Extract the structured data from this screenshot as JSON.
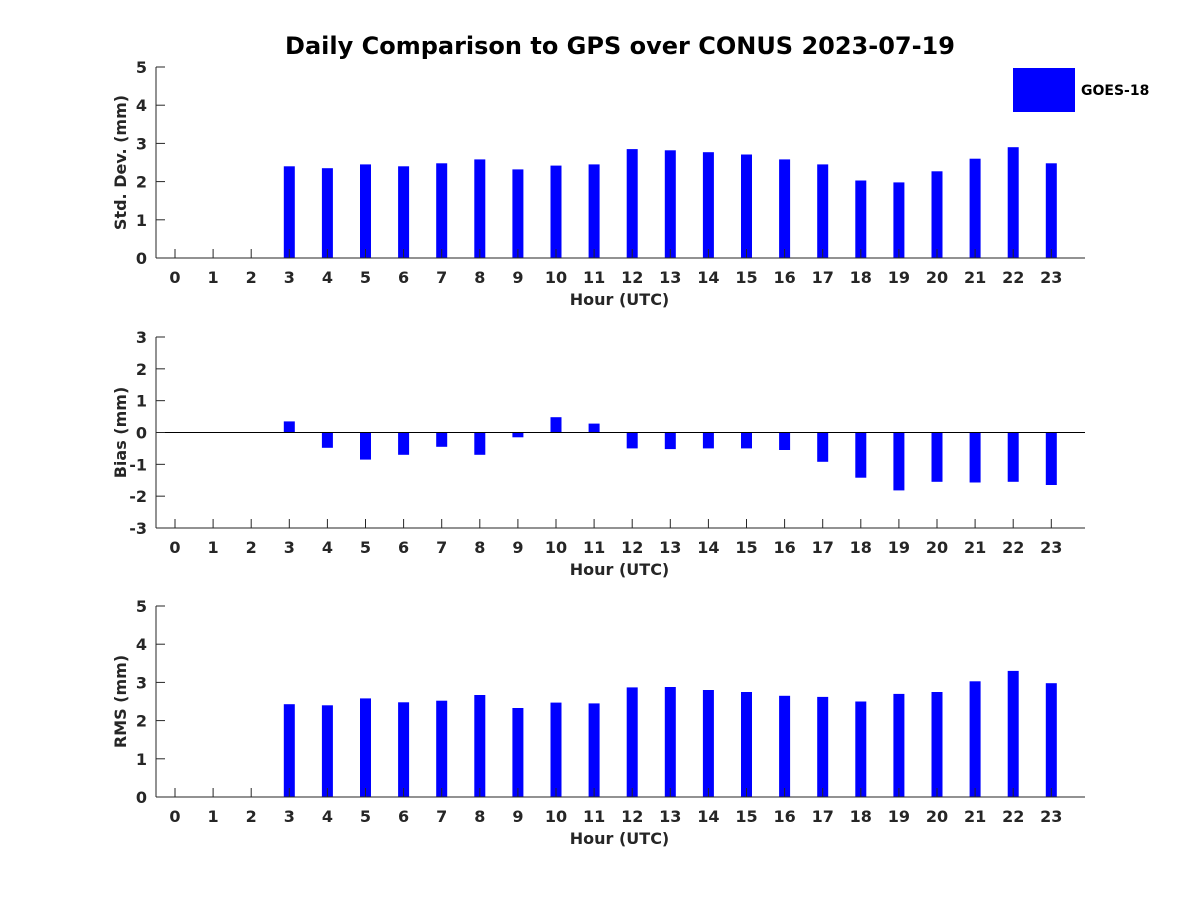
{
  "title": "Daily Comparison to GPS over CONUS 2023-07-19",
  "legend": {
    "label": "GOES-18",
    "position": "top-right"
  },
  "colors": {
    "bar": "#0000ff",
    "axis": "#262626"
  },
  "chart_data": [
    {
      "type": "bar",
      "ylabel": "Std. Dev. (mm)",
      "xlabel": "Hour (UTC)",
      "ylim": [
        0,
        5
      ],
      "yticks": [
        0,
        1,
        2,
        3,
        4,
        5
      ],
      "categories": [
        0,
        1,
        2,
        3,
        4,
        5,
        6,
        7,
        8,
        9,
        10,
        11,
        12,
        13,
        14,
        15,
        16,
        17,
        18,
        19,
        20,
        21,
        22,
        23
      ],
      "series": [
        {
          "name": "GOES-18",
          "values": [
            null,
            null,
            null,
            2.4,
            2.35,
            2.45,
            2.4,
            2.48,
            2.58,
            2.32,
            2.42,
            2.45,
            2.85,
            2.82,
            2.77,
            2.71,
            2.58,
            2.45,
            2.03,
            1.98,
            2.27,
            2.6,
            2.9,
            2.48
          ]
        }
      ]
    },
    {
      "type": "bar",
      "ylabel": "Bias (mm)",
      "xlabel": "Hour (UTC)",
      "ylim": [
        -3,
        3
      ],
      "yticks": [
        -3,
        -2,
        -1,
        0,
        1,
        2,
        3
      ],
      "categories": [
        0,
        1,
        2,
        3,
        4,
        5,
        6,
        7,
        8,
        9,
        10,
        11,
        12,
        13,
        14,
        15,
        16,
        17,
        18,
        19,
        20,
        21,
        22,
        23
      ],
      "series": [
        {
          "name": "GOES-18",
          "values": [
            null,
            null,
            null,
            0.35,
            -0.48,
            -0.85,
            -0.7,
            -0.45,
            -0.7,
            -0.15,
            0.48,
            0.28,
            -0.5,
            -0.52,
            -0.5,
            -0.5,
            -0.55,
            -0.92,
            -1.42,
            -1.82,
            -1.55,
            -1.57,
            -1.55,
            -1.65
          ]
        }
      ]
    },
    {
      "type": "bar",
      "ylabel": "RMS (mm)",
      "xlabel": "Hour (UTC)",
      "ylim": [
        0,
        5
      ],
      "yticks": [
        0,
        1,
        2,
        3,
        4,
        5
      ],
      "categories": [
        0,
        1,
        2,
        3,
        4,
        5,
        6,
        7,
        8,
        9,
        10,
        11,
        12,
        13,
        14,
        15,
        16,
        17,
        18,
        19,
        20,
        21,
        22,
        23
      ],
      "series": [
        {
          "name": "GOES-18",
          "values": [
            null,
            null,
            null,
            2.43,
            2.4,
            2.58,
            2.48,
            2.52,
            2.67,
            2.33,
            2.47,
            2.45,
            2.87,
            2.88,
            2.8,
            2.75,
            2.65,
            2.62,
            2.5,
            2.7,
            2.75,
            3.03,
            3.3,
            2.98
          ]
        }
      ]
    }
  ]
}
